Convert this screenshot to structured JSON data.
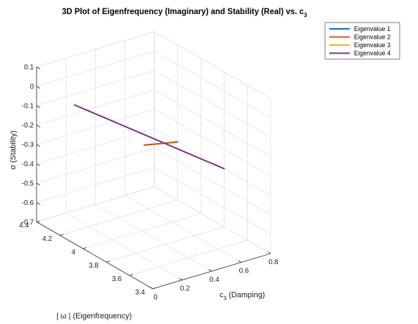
{
  "chart_data": {
    "type": "line",
    "projection": "3d",
    "title": "3D Plot of Eigenfrequency (Imaginary) and Stability (Real) vs. c",
    "title_subscript": "3",
    "xlabel": "c",
    "xlabel_subscript": "3",
    "xlabel_suffix": " (Damping)",
    "ylabel": "| ω | (Eigenfrequency)",
    "zlabel": "σ (Stability)",
    "xlim": [
      0,
      0.8
    ],
    "ylim": [
      3.4,
      4.4
    ],
    "zlim": [
      -0.7,
      0.1
    ],
    "x_ticks": [
      {
        "value": 0,
        "label": "0"
      },
      {
        "value": 0.2,
        "label": "0.2"
      },
      {
        "value": 0.4,
        "label": "0.4"
      },
      {
        "value": 0.6,
        "label": "0.6"
      },
      {
        "value": 0.8,
        "label": "0.8"
      }
    ],
    "y_ticks": [
      {
        "value": 3.4,
        "label": "3.4"
      },
      {
        "value": 3.6,
        "label": "3.6"
      },
      {
        "value": 3.8,
        "label": "3.8"
      },
      {
        "value": 4.0,
        "label": "4"
      },
      {
        "value": 4.2,
        "label": "4.2"
      },
      {
        "value": 4.4,
        "label": "4.4"
      }
    ],
    "z_ticks": [
      {
        "value": 0.1,
        "label": "0.1"
      },
      {
        "value": 0,
        "label": "0"
      },
      {
        "value": -0.1,
        "label": "-0.1"
      },
      {
        "value": -0.2,
        "label": "-0.2"
      },
      {
        "value": -0.3,
        "label": "-0.3"
      },
      {
        "value": -0.4,
        "label": "-0.4"
      },
      {
        "value": -0.5,
        "label": "-0.5"
      },
      {
        "value": -0.6,
        "label": "-0.6"
      },
      {
        "value": -0.7,
        "label": "-0.7"
      }
    ],
    "grid": true,
    "legend_position": "top-right",
    "series": [
      {
        "name": "Eigenvalue 1",
        "color": "#0072BD",
        "x": [
          0.1,
          0.8
        ],
        "y": [
          3.6,
          4.2
        ],
        "z": [
          -0.05,
          -0.4
        ]
      },
      {
        "name": "Eigenvalue 2",
        "color": "#D95319",
        "x": [
          0.1,
          0.8
        ],
        "y": [
          3.6,
          4.2
        ],
        "z": [
          -0.05,
          -0.4
        ]
      },
      {
        "name": "Eigenvalue 3",
        "color": "#EDB120",
        "x": [
          0.1,
          0.8
        ],
        "y": [
          4.2,
          3.8
        ],
        "z": [
          -0.05,
          -0.4
        ]
      },
      {
        "name": "Eigenvalue 4",
        "color": "#7E2F8E",
        "x": [
          0.1,
          0.8
        ],
        "y": [
          4.2,
          3.8
        ],
        "z": [
          -0.05,
          -0.4
        ]
      }
    ]
  }
}
